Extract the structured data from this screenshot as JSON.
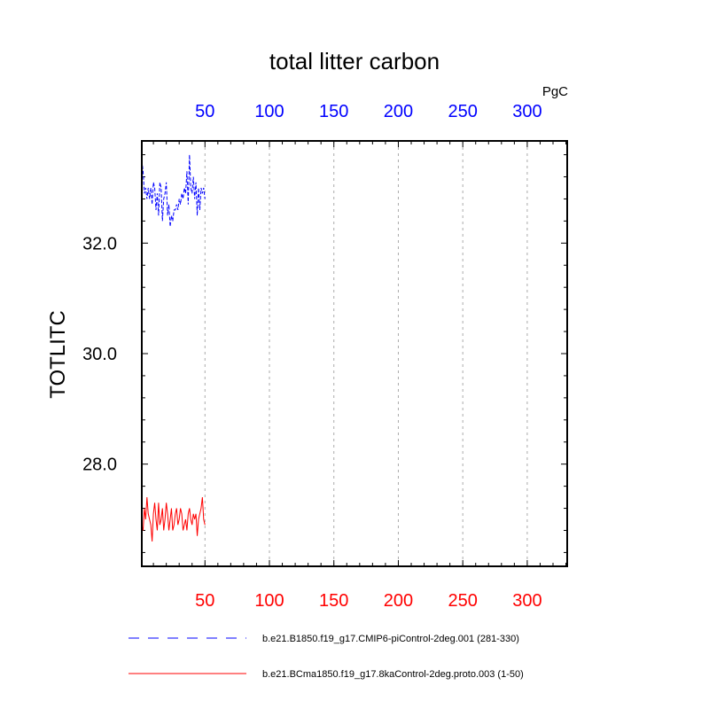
{
  "chart_data": {
    "type": "line",
    "title": "total litter carbon",
    "ylabel": "TOTLITC",
    "units": "PgC",
    "xlabel": "",
    "xlim": [
      1,
      331
    ],
    "ylim": [
      26.15,
      33.85
    ],
    "xticks": [
      50,
      100,
      150,
      200,
      250,
      300
    ],
    "xtick_labels": [
      "50",
      "100",
      "150",
      "200",
      "250",
      "300"
    ],
    "top_axis_color": "#0000ff",
    "bottom_axis_color": "#ff0000",
    "yticks": [
      28.0,
      30.0,
      32.0
    ],
    "ytick_labels": [
      "28.0",
      "30.0",
      "32.0"
    ],
    "grid": "vertical dashed at x ticks",
    "legend_position": "bottom",
    "series": [
      {
        "name": "b.e21.B1850.f19_g17.CMIP6-piControl-2deg.001 (281-330)",
        "color": "#0000ff",
        "dash": "dashed",
        "x": [
          1,
          2,
          3,
          4,
          5,
          6,
          7,
          8,
          9,
          10,
          11,
          12,
          13,
          14,
          15,
          16,
          17,
          18,
          19,
          20,
          21,
          22,
          23,
          24,
          25,
          26,
          27,
          28,
          29,
          30,
          31,
          32,
          33,
          34,
          35,
          36,
          37,
          38,
          39,
          40,
          41,
          42,
          43,
          44,
          45,
          46,
          47,
          48,
          49,
          50
        ],
        "values": [
          33.5,
          33.3,
          32.9,
          33.0,
          32.8,
          33.0,
          32.8,
          33.0,
          32.7,
          33.1,
          33.0,
          32.6,
          32.9,
          32.5,
          33.1,
          33.0,
          32.4,
          32.8,
          32.9,
          33.1,
          32.5,
          32.7,
          32.3,
          32.5,
          32.4,
          32.6,
          32.6,
          32.7,
          32.6,
          32.8,
          32.7,
          32.9,
          32.8,
          33.0,
          32.9,
          33.3,
          32.7,
          33.6,
          33.0,
          32.9,
          33.2,
          32.8,
          33.1,
          32.5,
          33.0,
          32.6,
          33.0,
          32.9,
          33.0,
          32.8
        ]
      },
      {
        "name": "b.e21.BCma1850.f19_g17.8kaControl-2deg.proto.003 (1-50)",
        "color": "#ff0000",
        "dash": "solid",
        "x": [
          1,
          2,
          3,
          4,
          5,
          6,
          7,
          8,
          9,
          10,
          11,
          12,
          13,
          14,
          15,
          16,
          17,
          18,
          19,
          20,
          21,
          22,
          23,
          24,
          25,
          26,
          27,
          28,
          29,
          30,
          31,
          32,
          33,
          34,
          35,
          36,
          37,
          38,
          39,
          40,
          41,
          42,
          43,
          44,
          45,
          46,
          47,
          48,
          49,
          50
        ],
        "values": [
          26.9,
          26.8,
          27.2,
          27.0,
          27.4,
          27.1,
          27.0,
          26.9,
          26.6,
          27.1,
          27.3,
          27.0,
          26.8,
          27.3,
          26.9,
          27.0,
          27.2,
          26.8,
          27.0,
          27.3,
          27.1,
          26.8,
          27.0,
          27.2,
          26.8,
          26.9,
          27.1,
          27.2,
          26.9,
          27.0,
          27.2,
          27.1,
          26.8,
          26.9,
          27.0,
          26.8,
          27.1,
          27.2,
          27.0,
          26.9,
          27.1,
          27.0,
          27.1,
          26.7,
          27.0,
          27.1,
          27.2,
          27.4,
          27.0,
          26.9
        ]
      }
    ]
  }
}
